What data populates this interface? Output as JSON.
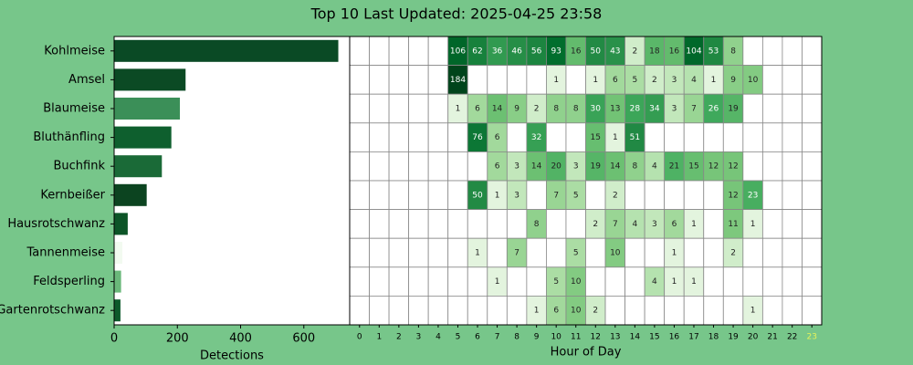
{
  "title": "Top 10 Last Updated: 2025-04-25 23:58",
  "chart_data": [
    {
      "type": "barh",
      "categories": [
        "Kohlmeise",
        "Amsel",
        "Blaumeise",
        "Bluthänfling",
        "Buchfink",
        "Kernbeißer",
        "Hausrotschwanz",
        "Tannenmeise",
        "Feldsperling",
        "Gartenrotschwanz"
      ],
      "values": [
        709,
        226,
        208,
        181,
        151,
        103,
        43,
        26,
        22,
        20
      ],
      "colors": [
        "#0a4a25",
        "#0b4a24",
        "#3b8f58",
        "#0e5f2e",
        "#1a6a37",
        "#0c4420",
        "#0c5427",
        "#f2faf0",
        "#6ab87a",
        "#0d5a2b"
      ],
      "xlim": [
        0,
        745
      ],
      "xticks": [
        0,
        200,
        400,
        600
      ],
      "xlabel": "Detections"
    },
    {
      "type": "heatmap",
      "categories": [
        "0",
        "1",
        "2",
        "3",
        "4",
        "5",
        "6",
        "7",
        "8",
        "9",
        "10",
        "11",
        "12",
        "13",
        "14",
        "15",
        "16",
        "17",
        "18",
        "19",
        "20",
        "21",
        "22",
        "23"
      ],
      "xlabel": "Hour of Day",
      "colormap": "Greens",
      "color_scale": "log",
      "highlight_index": 23,
      "highlight_color": "#e6f25a",
      "values": [
        [
          null,
          null,
          null,
          null,
          null,
          106,
          62,
          36,
          46,
          56,
          93,
          16,
          50,
          43,
          2,
          18,
          16,
          104,
          53,
          8,
          null,
          null,
          null,
          null
        ],
        [
          null,
          null,
          null,
          null,
          null,
          184,
          null,
          null,
          null,
          null,
          1,
          null,
          1,
          6,
          5,
          2,
          3,
          4,
          1,
          9,
          10,
          null,
          null,
          null
        ],
        [
          null,
          null,
          null,
          null,
          null,
          1,
          6,
          14,
          9,
          2,
          8,
          8,
          30,
          13,
          28,
          34,
          3,
          7,
          26,
          19,
          null,
          null,
          null,
          null
        ],
        [
          null,
          null,
          null,
          null,
          null,
          null,
          76,
          6,
          null,
          32,
          null,
          null,
          15,
          1,
          51,
          null,
          null,
          null,
          null,
          null,
          null,
          null,
          null,
          null
        ],
        [
          null,
          null,
          null,
          null,
          null,
          null,
          null,
          6,
          3,
          14,
          20,
          3,
          19,
          14,
          8,
          4,
          21,
          15,
          12,
          12,
          null,
          null,
          null,
          null
        ],
        [
          null,
          null,
          null,
          null,
          null,
          null,
          50,
          1,
          3,
          null,
          7,
          5,
          null,
          2,
          null,
          null,
          null,
          null,
          null,
          12,
          23,
          null,
          null,
          null
        ],
        [
          null,
          null,
          null,
          null,
          null,
          null,
          null,
          null,
          null,
          8,
          null,
          null,
          2,
          7,
          4,
          3,
          6,
          1,
          null,
          11,
          1,
          null,
          null,
          null
        ],
        [
          null,
          null,
          null,
          null,
          null,
          null,
          1,
          null,
          7,
          null,
          null,
          5,
          null,
          10,
          null,
          null,
          1,
          null,
          null,
          2,
          null,
          null,
          null,
          null
        ],
        [
          null,
          null,
          null,
          null,
          null,
          null,
          null,
          1,
          null,
          null,
          5,
          10,
          null,
          null,
          null,
          4,
          1,
          1,
          null,
          null,
          null,
          null,
          null,
          null
        ],
        [
          null,
          null,
          null,
          null,
          null,
          null,
          null,
          null,
          null,
          1,
          6,
          10,
          2,
          null,
          null,
          null,
          null,
          null,
          null,
          null,
          1,
          null,
          null,
          null
        ]
      ]
    }
  ]
}
